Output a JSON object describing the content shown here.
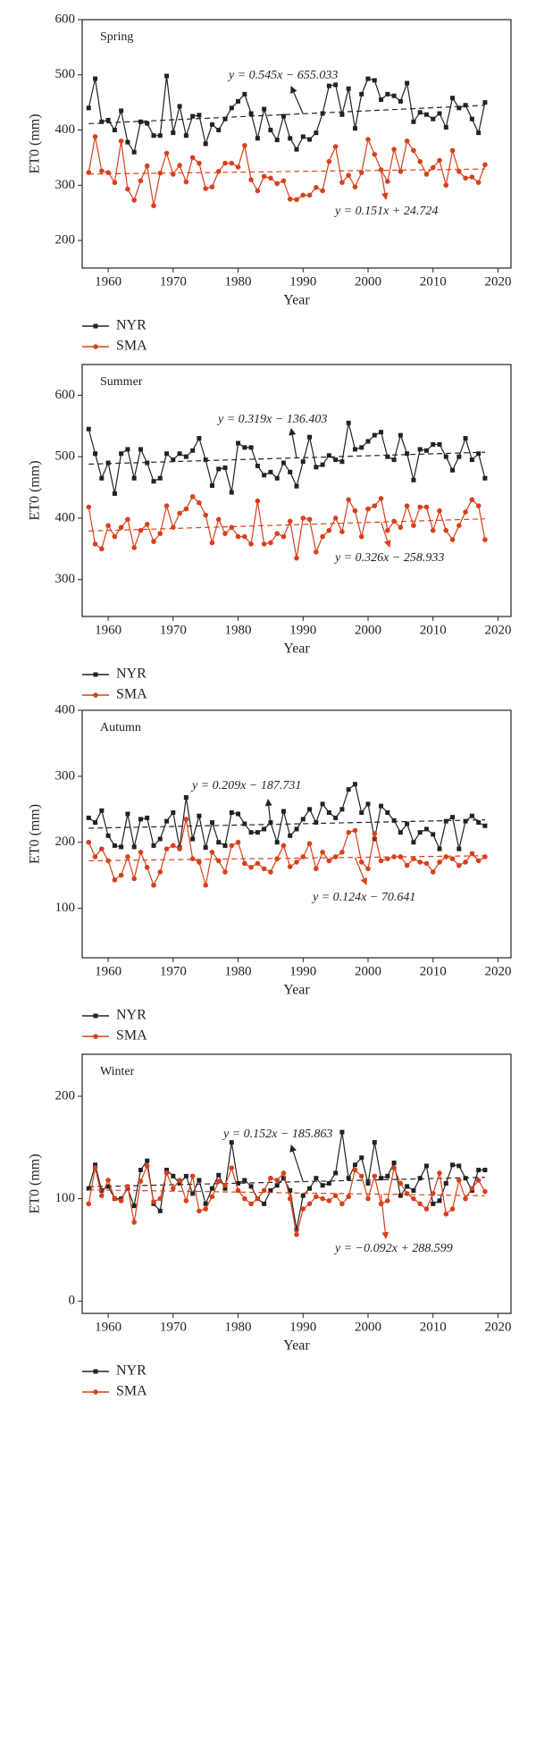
{
  "chart_data": [
    {
      "type": "line",
      "title": "Spring",
      "x_label": "Year",
      "y_label": "ET0 (mm)",
      "legend": "bottom",
      "x": [
        1957,
        1958,
        1959,
        1960,
        1961,
        1962,
        1963,
        1964,
        1965,
        1966,
        1967,
        1968,
        1969,
        1970,
        1971,
        1972,
        1973,
        1974,
        1975,
        1976,
        1977,
        1978,
        1979,
        1980,
        1981,
        1982,
        1983,
        1984,
        1985,
        1986,
        1987,
        1988,
        1989,
        1990,
        1991,
        1992,
        1993,
        1994,
        1995,
        1996,
        1997,
        1998,
        1999,
        2000,
        2001,
        2002,
        2003,
        2004,
        2005,
        2006,
        2007,
        2008,
        2009,
        2010,
        2011,
        2012,
        2013,
        2014,
        2015,
        2016,
        2017,
        2018
      ],
      "xlim": [
        1956,
        2022
      ],
      "xticks": [
        1960,
        1970,
        1980,
        1990,
        2000,
        2010,
        2020
      ],
      "ylim": [
        150,
        600
      ],
      "yticks": [
        200,
        300,
        400,
        500,
        600
      ],
      "trend_x": [
        1957,
        2018
      ],
      "annotations": [
        "y = 0.545x − 655.033",
        "y = 0.151x + 24.724"
      ],
      "series": [
        {
          "name": "NYR",
          "color": "#222222",
          "marker": "square",
          "trend": [
            411.5,
            444.8
          ],
          "values": [
            440,
            493,
            415,
            418,
            400,
            435,
            378,
            360,
            415,
            412,
            390,
            390,
            498,
            395,
            443,
            390,
            425,
            427,
            375,
            410,
            400,
            420,
            440,
            452,
            465,
            430,
            385,
            438,
            400,
            382,
            425,
            385,
            365,
            388,
            383,
            395,
            430,
            480,
            482,
            428,
            475,
            403,
            465,
            493,
            490,
            455,
            465,
            462,
            452,
            485,
            415,
            432,
            428,
            420,
            430,
            405,
            458,
            440,
            445,
            420,
            395,
            450
          ]
        },
        {
          "name": "SMA",
          "color": "#d9401a",
          "marker": "circle",
          "trend": [
            320.2,
            329.4
          ],
          "values": [
            323,
            388,
            326,
            323,
            305,
            380,
            293,
            273,
            308,
            335,
            263,
            322,
            358,
            320,
            336,
            306,
            350,
            340,
            294,
            297,
            325,
            340,
            340,
            333,
            372,
            310,
            290,
            316,
            313,
            303,
            308,
            275,
            274,
            282,
            282,
            296,
            290,
            343,
            370,
            305,
            318,
            297,
            323,
            383,
            356,
            328,
            307,
            365,
            325,
            380,
            363,
            343,
            320,
            332,
            345,
            300,
            363,
            325,
            313,
            315,
            305,
            337
          ]
        }
      ]
    },
    {
      "type": "line",
      "title": "Summer",
      "x_label": "Year",
      "y_label": "ET0 (mm)",
      "legend": "bottom",
      "x": [
        1957,
        1958,
        1959,
        1960,
        1961,
        1962,
        1963,
        1964,
        1965,
        1966,
        1967,
        1968,
        1969,
        1970,
        1971,
        1972,
        1973,
        1974,
        1975,
        1976,
        1977,
        1978,
        1979,
        1980,
        1981,
        1982,
        1983,
        1984,
        1985,
        1986,
        1987,
        1988,
        1989,
        1990,
        1991,
        1992,
        1993,
        1994,
        1995,
        1996,
        1997,
        1998,
        1999,
        2000,
        2001,
        2002,
        2003,
        2004,
        2005,
        2006,
        2007,
        2008,
        2009,
        2010,
        2011,
        2012,
        2013,
        2014,
        2015,
        2016,
        2017,
        2018
      ],
      "xlim": [
        1956,
        2022
      ],
      "xticks": [
        1960,
        1970,
        1980,
        1990,
        2000,
        2010,
        2020
      ],
      "ylim": [
        240,
        650
      ],
      "yticks": [
        300,
        400,
        500,
        600
      ],
      "trend_x": [
        1957,
        2018
      ],
      "annotations": [
        "y = 0.319x − 136.403",
        "y = 0.326x − 258.933"
      ],
      "series": [
        {
          "name": "NYR",
          "color": "#222222",
          "marker": "square",
          "trend": [
            487.9,
            507.3
          ],
          "values": [
            545,
            505,
            465,
            490,
            440,
            505,
            512,
            465,
            512,
            490,
            460,
            465,
            505,
            495,
            505,
            500,
            510,
            530,
            495,
            453,
            480,
            482,
            442,
            522,
            515,
            515,
            485,
            470,
            475,
            465,
            490,
            475,
            452,
            492,
            532,
            483,
            487,
            502,
            495,
            492,
            555,
            512,
            515,
            525,
            535,
            540,
            500,
            495,
            535,
            505,
            462,
            512,
            510,
            520,
            520,
            500,
            478,
            500,
            530,
            495,
            505,
            465
          ]
        },
        {
          "name": "SMA",
          "color": "#d9401a",
          "marker": "circle",
          "trend": [
            379.0,
            398.9
          ],
          "values": [
            418,
            358,
            350,
            388,
            370,
            385,
            398,
            352,
            380,
            390,
            362,
            375,
            420,
            385,
            408,
            415,
            435,
            425,
            405,
            360,
            398,
            375,
            385,
            370,
            370,
            358,
            428,
            358,
            360,
            375,
            370,
            395,
            335,
            400,
            398,
            345,
            370,
            380,
            400,
            378,
            430,
            412,
            370,
            415,
            420,
            432,
            380,
            395,
            385,
            420,
            388,
            418,
            418,
            380,
            412,
            380,
            365,
            388,
            410,
            430,
            420,
            365
          ]
        }
      ]
    },
    {
      "type": "line",
      "title": "Autumn",
      "x_label": "Year",
      "y_label": "ET0 (mm)",
      "legend": "bottom",
      "x": [
        1957,
        1958,
        1959,
        1960,
        1961,
        1962,
        1963,
        1964,
        1965,
        1966,
        1967,
        1968,
        1969,
        1970,
        1971,
        1972,
        1973,
        1974,
        1975,
        1976,
        1977,
        1978,
        1979,
        1980,
        1981,
        1982,
        1983,
        1984,
        1985,
        1986,
        1987,
        1988,
        1989,
        1990,
        1991,
        1992,
        1993,
        1994,
        1995,
        1996,
        1997,
        1998,
        1999,
        2000,
        2001,
        2002,
        2003,
        2004,
        2005,
        2006,
        2007,
        2008,
        2009,
        2010,
        2011,
        2012,
        2013,
        2014,
        2015,
        2016,
        2017,
        2018
      ],
      "xlim": [
        1956,
        2022
      ],
      "xticks": [
        1960,
        1970,
        1980,
        1990,
        2000,
        2010,
        2020
      ],
      "ylim": [
        25,
        400
      ],
      "yticks": [
        100,
        200,
        300,
        400
      ],
      "trend_x": [
        1957,
        2018
      ],
      "annotations": [
        "y = 0.209x − 187.731",
        "y = 0.124x − 70.641"
      ],
      "series": [
        {
          "name": "NYR",
          "color": "#222222",
          "marker": "square",
          "trend": [
            221.3,
            234.0
          ],
          "values": [
            237,
            230,
            248,
            210,
            195,
            193,
            243,
            193,
            235,
            237,
            195,
            205,
            232,
            245,
            192,
            268,
            205,
            240,
            192,
            230,
            200,
            195,
            245,
            243,
            228,
            215,
            215,
            220,
            230,
            200,
            247,
            210,
            220,
            235,
            250,
            230,
            258,
            245,
            237,
            250,
            280,
            288,
            245,
            258,
            205,
            255,
            245,
            233,
            215,
            228,
            200,
            215,
            220,
            212,
            190,
            232,
            238,
            190,
            232,
            240,
            230,
            225
          ]
        },
        {
          "name": "SMA",
          "color": "#d9401a",
          "marker": "circle",
          "trend": [
            172.0,
            179.6
          ],
          "values": [
            200,
            178,
            190,
            172,
            143,
            150,
            178,
            145,
            185,
            162,
            135,
            155,
            190,
            195,
            190,
            235,
            175,
            170,
            135,
            185,
            172,
            155,
            195,
            200,
            168,
            162,
            168,
            160,
            155,
            175,
            195,
            163,
            170,
            178,
            198,
            160,
            185,
            172,
            178,
            185,
            215,
            218,
            170,
            160,
            213,
            172,
            175,
            178,
            178,
            165,
            175,
            170,
            168,
            155,
            170,
            178,
            175,
            165,
            170,
            183,
            172,
            178
          ]
        }
      ]
    },
    {
      "type": "line",
      "title": "Winter",
      "x_label": "Year",
      "y_label": "ET0 (mm)",
      "legend": "bottom",
      "x": [
        1957,
        1958,
        1959,
        1960,
        1961,
        1962,
        1963,
        1964,
        1965,
        1966,
        1967,
        1968,
        1969,
        1970,
        1971,
        1972,
        1973,
        1974,
        1975,
        1976,
        1977,
        1978,
        1979,
        1980,
        1981,
        1982,
        1983,
        1984,
        1985,
        1986,
        1987,
        1988,
        1989,
        1990,
        1991,
        1992,
        1993,
        1994,
        1995,
        1996,
        1997,
        1998,
        1999,
        2000,
        2001,
        2002,
        2003,
        2004,
        2005,
        2006,
        2007,
        2008,
        2009,
        2010,
        2011,
        2012,
        2013,
        2014,
        2015,
        2016,
        2017,
        2018
      ],
      "xlim": [
        1956,
        2022
      ],
      "xticks": [
        1960,
        1970,
        1980,
        1990,
        2000,
        2010,
        2020
      ],
      "ylim": [
        -12,
        241
      ],
      "yticks": [
        0,
        100,
        200
      ],
      "trend_x": [
        1957,
        2018
      ],
      "annotations": [
        "y = 0.152x − 185.863",
        "y = −0.092x + 288.599"
      ],
      "series": [
        {
          "name": "NYR",
          "color": "#222222",
          "marker": "square",
          "trend": [
            111.6,
            120.9
          ],
          "values": [
            110,
            133,
            108,
            112,
            100,
            100,
            110,
            93,
            128,
            137,
            95,
            88,
            128,
            122,
            115,
            122,
            105,
            118,
            95,
            110,
            123,
            110,
            155,
            115,
            118,
            112,
            100,
            95,
            108,
            113,
            120,
            108,
            70,
            103,
            110,
            120,
            113,
            115,
            125,
            165,
            120,
            133,
            140,
            115,
            155,
            120,
            122,
            135,
            103,
            112,
            108,
            120,
            132,
            95,
            98,
            115,
            133,
            132,
            120,
            108,
            128,
            128
          ]
        },
        {
          "name": "SMA",
          "color": "#d9401a",
          "marker": "circle",
          "trend": [
            108.6,
            102.9
          ],
          "values": [
            95,
            130,
            103,
            118,
            100,
            98,
            112,
            77,
            117,
            132,
            97,
            100,
            125,
            110,
            118,
            98,
            122,
            88,
            90,
            102,
            117,
            113,
            130,
            108,
            100,
            95,
            100,
            108,
            120,
            118,
            125,
            100,
            65,
            90,
            95,
            102,
            100,
            98,
            103,
            95,
            102,
            128,
            122,
            100,
            122,
            95,
            98,
            130,
            115,
            105,
            100,
            95,
            90,
            105,
            125,
            85,
            90,
            118,
            100,
            110,
            118,
            107
          ]
        }
      ]
    }
  ]
}
